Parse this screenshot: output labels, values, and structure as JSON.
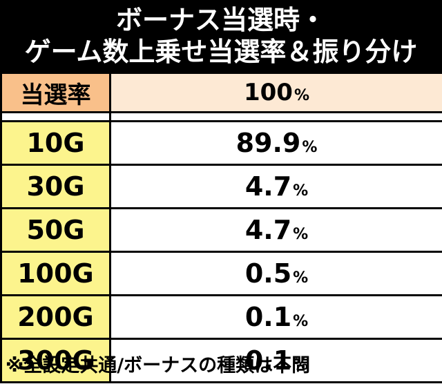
{
  "title": {
    "line1": "ボーナス当選時・",
    "line2": "ゲーム数上乗せ当選率＆振り分け"
  },
  "rate": {
    "label": "当選率",
    "value": "100",
    "unit": "%"
  },
  "rows": [
    {
      "games": "10G",
      "value": "89.9",
      "unit": "%"
    },
    {
      "games": "30G",
      "value": "4.7",
      "unit": "%"
    },
    {
      "games": "50G",
      "value": "4.7",
      "unit": "%"
    },
    {
      "games": "100G",
      "value": "0.5",
      "unit": "%"
    },
    {
      "games": "200G",
      "value": "0.1",
      "unit": "%"
    },
    {
      "games": "300G",
      "value": "0.1",
      "unit": "%"
    }
  ],
  "footnote": "※全設定共通/ボーナスの種類は不問",
  "colors": {
    "header_bg": "#000000",
    "rate_label_bg": "#f9c08a",
    "rate_value_bg": "#fde9d4",
    "games_label_bg": "#fcf48d"
  }
}
